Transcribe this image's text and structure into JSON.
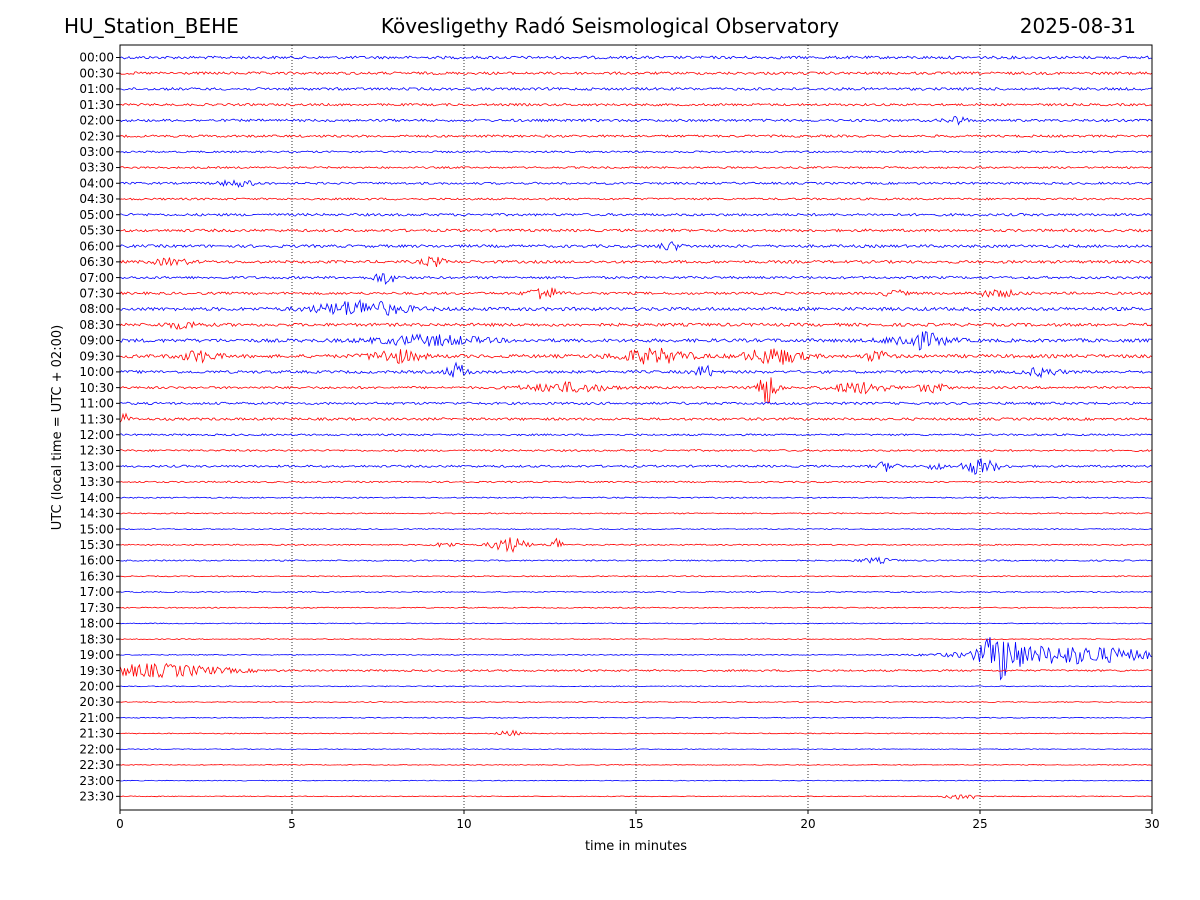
{
  "header": {
    "station": "HU_Station_BEHE",
    "title": "Kövesligethy Radó Seismological Observatory",
    "date": "2025-08-31"
  },
  "colors": {
    "even_rows": "#0000ff",
    "odd_rows": "#ff0000"
  },
  "chart_data": {
    "type": "line",
    "xlabel": "time in minutes",
    "ylabel": "UTC (local time = UTC + 02:00)",
    "xlim": [
      0,
      30
    ],
    "xticks": [
      0,
      5,
      10,
      15,
      20,
      25,
      30
    ],
    "vertical_grid": "dotted",
    "row_labels": [
      "00:00",
      "00:30",
      "01:00",
      "01:30",
      "02:00",
      "02:30",
      "03:00",
      "03:30",
      "04:00",
      "04:30",
      "05:00",
      "05:30",
      "06:00",
      "06:30",
      "07:00",
      "07:30",
      "08:00",
      "08:30",
      "09:00",
      "09:30",
      "10:00",
      "10:30",
      "11:00",
      "11:30",
      "12:00",
      "12:30",
      "13:00",
      "13:30",
      "14:00",
      "14:30",
      "15:00",
      "15:30",
      "16:00",
      "16:30",
      "17:00",
      "17:30",
      "18:00",
      "18:30",
      "19:00",
      "19:30",
      "20:00",
      "20:30",
      "21:00",
      "21:30",
      "22:00",
      "22:30",
      "23:00",
      "23:30"
    ],
    "row_noise_level": [
      0.18,
      0.17,
      0.17,
      0.15,
      0.16,
      0.15,
      0.12,
      0.12,
      0.14,
      0.13,
      0.16,
      0.17,
      0.18,
      0.18,
      0.16,
      0.16,
      0.22,
      0.2,
      0.22,
      0.22,
      0.18,
      0.15,
      0.16,
      0.16,
      0.12,
      0.12,
      0.14,
      0.1,
      0.08,
      0.08,
      0.07,
      0.08,
      0.09,
      0.07,
      0.07,
      0.07,
      0.06,
      0.06,
      0.06,
      0.12,
      0.06,
      0.06,
      0.06,
      0.06,
      0.05,
      0.05,
      0.05,
      0.05
    ],
    "events": [
      {
        "row": "02:00",
        "minute": 24.3,
        "amplitude": 0.5,
        "duration": 0.3
      },
      {
        "row": "04:00",
        "minute": 3.4,
        "amplitude": 0.4,
        "duration": 0.5
      },
      {
        "row": "06:00",
        "minute": 16.0,
        "amplitude": 0.5,
        "duration": 0.3
      },
      {
        "row": "06:30",
        "minute": 9.1,
        "amplitude": 0.6,
        "duration": 0.3
      },
      {
        "row": "06:30",
        "minute": 1.5,
        "amplitude": 0.4,
        "duration": 0.5
      },
      {
        "row": "07:00",
        "minute": 7.7,
        "amplitude": 0.8,
        "duration": 0.3
      },
      {
        "row": "07:30",
        "minute": 12.3,
        "amplitude": 0.9,
        "duration": 0.4
      },
      {
        "row": "07:30",
        "minute": 22.5,
        "amplitude": 0.4,
        "duration": 0.3
      },
      {
        "row": "07:30",
        "minute": 25.5,
        "amplitude": 0.4,
        "duration": 0.6
      },
      {
        "row": "08:00",
        "minute": 7.0,
        "amplitude": 1.0,
        "duration": 1.2
      },
      {
        "row": "08:30",
        "minute": 1.8,
        "amplitude": 0.4,
        "duration": 0.5
      },
      {
        "row": "09:00",
        "minute": 9.0,
        "amplitude": 0.6,
        "duration": 1.5
      },
      {
        "row": "09:00",
        "minute": 23.2,
        "amplitude": 1.0,
        "duration": 0.8
      },
      {
        "row": "09:30",
        "minute": 2.3,
        "amplitude": 0.7,
        "duration": 0.5
      },
      {
        "row": "09:30",
        "minute": 8.0,
        "amplitude": 0.8,
        "duration": 0.7
      },
      {
        "row": "09:30",
        "minute": 15.5,
        "amplitude": 0.9,
        "duration": 1.0
      },
      {
        "row": "09:30",
        "minute": 19.0,
        "amplitude": 1.0,
        "duration": 0.8
      },
      {
        "row": "09:30",
        "minute": 22.0,
        "amplitude": 0.7,
        "duration": 0.3
      },
      {
        "row": "10:00",
        "minute": 9.8,
        "amplitude": 1.0,
        "duration": 0.3
      },
      {
        "row": "10:00",
        "minute": 17.0,
        "amplitude": 0.7,
        "duration": 0.3
      },
      {
        "row": "10:00",
        "minute": 26.8,
        "amplitude": 0.5,
        "duration": 0.5
      },
      {
        "row": "10:30",
        "minute": 13.0,
        "amplitude": 0.6,
        "duration": 1.2
      },
      {
        "row": "10:30",
        "minute": 18.8,
        "amplitude": 2.0,
        "duration": 0.3
      },
      {
        "row": "10:30",
        "minute": 21.5,
        "amplitude": 0.7,
        "duration": 0.8
      },
      {
        "row": "10:30",
        "minute": 23.6,
        "amplitude": 0.6,
        "duration": 0.4
      },
      {
        "row": "11:30",
        "minute": 0.05,
        "amplitude": 0.8,
        "duration": 0.2
      },
      {
        "row": "13:00",
        "minute": 22.3,
        "amplitude": 0.6,
        "duration": 0.3
      },
      {
        "row": "13:00",
        "minute": 23.7,
        "amplitude": 0.5,
        "duration": 0.2
      },
      {
        "row": "13:00",
        "minute": 25.0,
        "amplitude": 1.0,
        "duration": 0.5
      },
      {
        "row": "15:30",
        "minute": 11.3,
        "amplitude": 1.0,
        "duration": 0.5
      },
      {
        "row": "15:30",
        "minute": 12.7,
        "amplitude": 0.8,
        "duration": 0.2
      },
      {
        "row": "15:30",
        "minute": 9.5,
        "amplitude": 0.3,
        "duration": 0.4
      },
      {
        "row": "16:00",
        "minute": 22.0,
        "amplitude": 0.3,
        "duration": 0.5
      },
      {
        "row": "19:00",
        "minute": 25.6,
        "amplitude": 2.6,
        "duration": 0.5
      },
      {
        "row": "19:00",
        "minute": 27.5,
        "amplitude": 1.2,
        "duration": 2.6
      },
      {
        "row": "19:30",
        "minute": 1.0,
        "amplitude": 0.8,
        "duration": 2.0
      },
      {
        "row": "21:30",
        "minute": 11.3,
        "amplitude": 0.4,
        "duration": 0.3
      },
      {
        "row": "23:30",
        "minute": 24.5,
        "amplitude": 0.4,
        "duration": 0.5
      }
    ]
  }
}
